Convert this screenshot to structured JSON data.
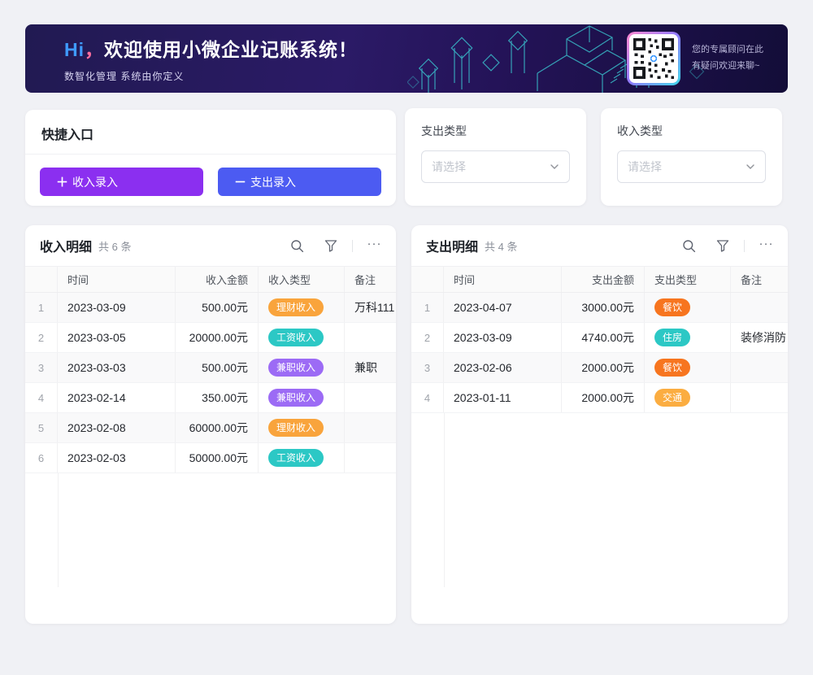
{
  "banner": {
    "greeting": "Hi",
    "comma": "，",
    "title": "欢迎使用小微企业记账系统！",
    "subtitle": "数智化管理 系统由你定义",
    "qr_caption_line1": "您的专属顾问在此",
    "qr_caption_line2": "有疑问欢迎来聊~"
  },
  "quick_entry": {
    "title": "快捷入口",
    "income_button": {
      "icon": "＋",
      "label": "收入录入",
      "color": "#8b2ff0"
    },
    "expense_button": {
      "icon": "－",
      "label": "支出录入",
      "color": "#4c5bf2"
    }
  },
  "filters": {
    "expense_type": {
      "label": "支出类型",
      "placeholder": "请选择"
    },
    "income_type": {
      "label": "收入类型",
      "placeholder": "请选择"
    }
  },
  "icons": {
    "search": "magnifier",
    "filter": "funnel",
    "more": "···",
    "chevron_down": "⌄"
  },
  "income_table": {
    "title": "收入明细",
    "count": "共 6 条",
    "columns": {
      "time": "时间",
      "amount": "收入金额",
      "type": "收入类型",
      "note": "备注"
    },
    "rows": [
      {
        "index": "1",
        "date": "2023-03-09",
        "amount": "500.00元",
        "type": "理财收入",
        "type_color": "#f9a43c",
        "note": "万科111"
      },
      {
        "index": "2",
        "date": "2023-03-05",
        "amount": "20000.00元",
        "type": "工资收入",
        "type_color": "#2cc8c5",
        "note": ""
      },
      {
        "index": "3",
        "date": "2023-03-03",
        "amount": "500.00元",
        "type": "兼职收入",
        "type_color": "#9c6bf5",
        "note": "兼职"
      },
      {
        "index": "4",
        "date": "2023-02-14",
        "amount": "350.00元",
        "type": "兼职收入",
        "type_color": "#9c6bf5",
        "note": ""
      },
      {
        "index": "5",
        "date": "2023-02-08",
        "amount": "60000.00元",
        "type": "理财收入",
        "type_color": "#f9a43c",
        "note": ""
      },
      {
        "index": "6",
        "date": "2023-02-03",
        "amount": "50000.00元",
        "type": "工资收入",
        "type_color": "#2cc8c5",
        "note": ""
      }
    ]
  },
  "expense_table": {
    "title": "支出明细",
    "count": "共 4 条",
    "columns": {
      "time": "时间",
      "amount": "支出金额",
      "type": "支出类型",
      "note": "备注"
    },
    "rows": [
      {
        "index": "1",
        "date": "2023-04-07",
        "amount": "3000.00元",
        "type": "餐饮",
        "type_color": "#f7751f",
        "note": ""
      },
      {
        "index": "2",
        "date": "2023-03-09",
        "amount": "4740.00元",
        "type": "住房",
        "type_color": "#2cc8c5",
        "note": "装修消防"
      },
      {
        "index": "3",
        "date": "2023-02-06",
        "amount": "2000.00元",
        "type": "餐饮",
        "type_color": "#f7751f",
        "note": ""
      },
      {
        "index": "4",
        "date": "2023-01-11",
        "amount": "2000.00元",
        "type": "交通",
        "type_color": "#fbad41",
        "note": ""
      }
    ]
  }
}
